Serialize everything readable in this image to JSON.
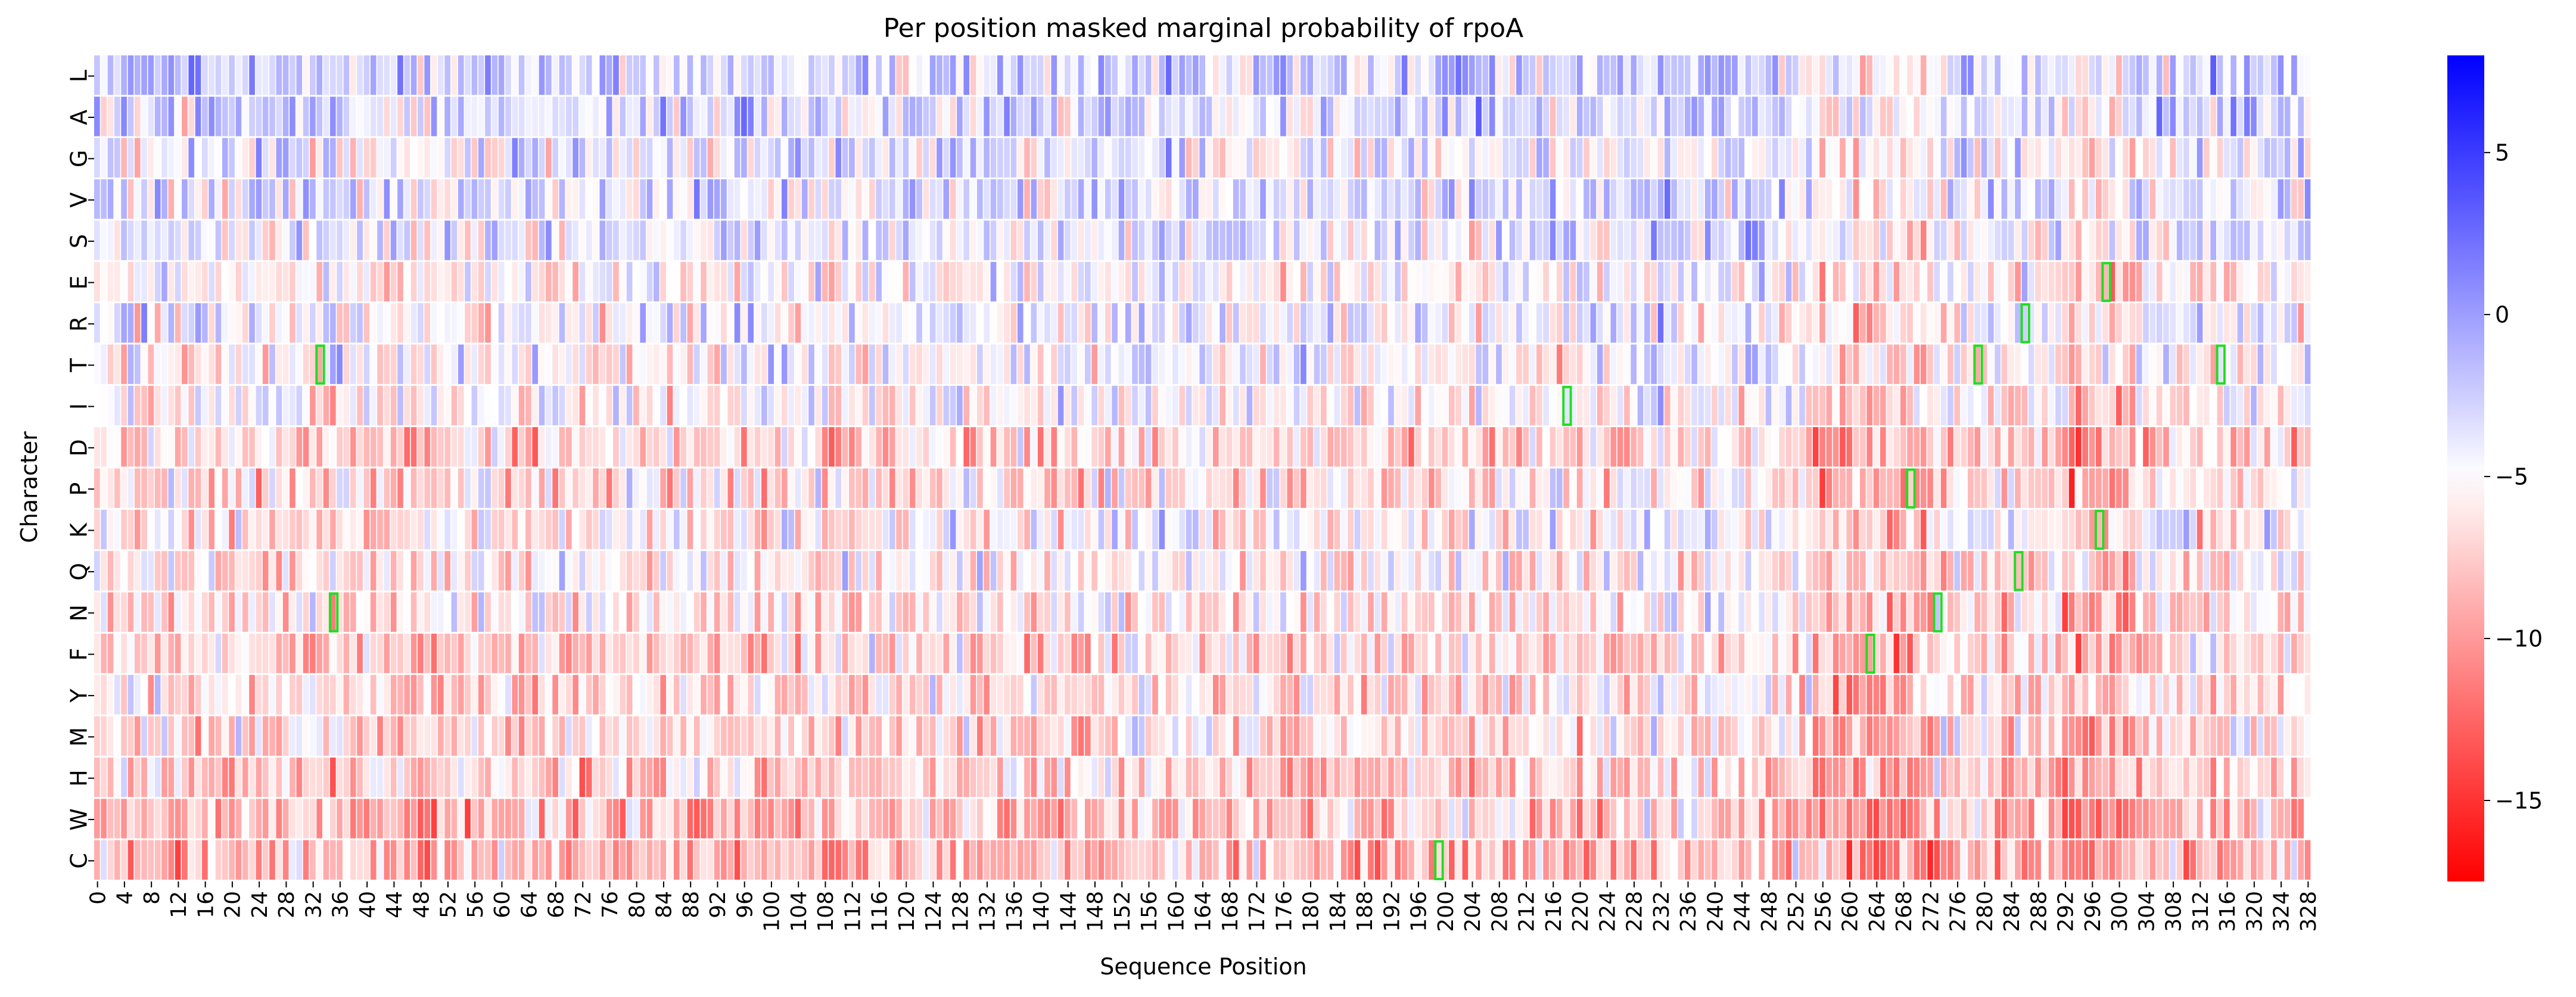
{
  "chart_data": {
    "type": "heatmap",
    "title": "Per position masked marginal probability of rpoA",
    "xlabel": "Sequence Position",
    "ylabel": "Character",
    "rows": [
      "L",
      "A",
      "G",
      "V",
      "S",
      "E",
      "R",
      "T",
      "I",
      "D",
      "P",
      "K",
      "Q",
      "N",
      "F",
      "Y",
      "M",
      "H",
      "W",
      "C"
    ],
    "x_range": [
      0,
      329
    ],
    "x_tick_labels": [
      "0",
      "4",
      "8",
      "12",
      "16",
      "20",
      "24",
      "28",
      "32",
      "36",
      "40",
      "44",
      "48",
      "52",
      "56",
      "60",
      "64",
      "68",
      "72",
      "76",
      "80",
      "84",
      "88",
      "92",
      "96",
      "100",
      "104",
      "108",
      "112",
      "116",
      "120",
      "124",
      "128",
      "132",
      "136",
      "140",
      "144",
      "148",
      "152",
      "156",
      "160",
      "164",
      "168",
      "172",
      "176",
      "180",
      "184",
      "188",
      "192",
      "196",
      "200",
      "204",
      "208",
      "212",
      "216",
      "220",
      "224",
      "228",
      "232",
      "236",
      "240",
      "244",
      "248",
      "252",
      "256",
      "260",
      "264",
      "268",
      "272",
      "276",
      "280",
      "284",
      "288",
      "292",
      "296",
      "300",
      "304",
      "308",
      "312",
      "316",
      "320",
      "324",
      "328"
    ],
    "colorscale": {
      "min": -17.5,
      "mid": -5,
      "max": 8,
      "low_color": "#ff0000",
      "mid_color": "#ffffff",
      "high_color": "#0000ff"
    },
    "colorbar_ticks": [
      "5",
      "0",
      "−5",
      "−10",
      "−15"
    ],
    "colorbar_tick_values": [
      5,
      0,
      -5,
      -10,
      -15
    ],
    "highlighted_cells": [
      {
        "position": 33,
        "character": "T"
      },
      {
        "position": 35,
        "character": "N"
      },
      {
        "position": 199,
        "character": "C"
      },
      {
        "position": 218,
        "character": "I"
      },
      {
        "position": 263,
        "character": "F"
      },
      {
        "position": 269,
        "character": "P"
      },
      {
        "position": 273,
        "character": "N"
      },
      {
        "position": 279,
        "character": "T"
      },
      {
        "position": 285,
        "character": "Q"
      },
      {
        "position": 286,
        "character": "R"
      },
      {
        "position": 297,
        "character": "K"
      },
      {
        "position": 298,
        "character": "E"
      },
      {
        "position": 315,
        "character": "T"
      }
    ],
    "highlight_color": "#22dd22"
  }
}
